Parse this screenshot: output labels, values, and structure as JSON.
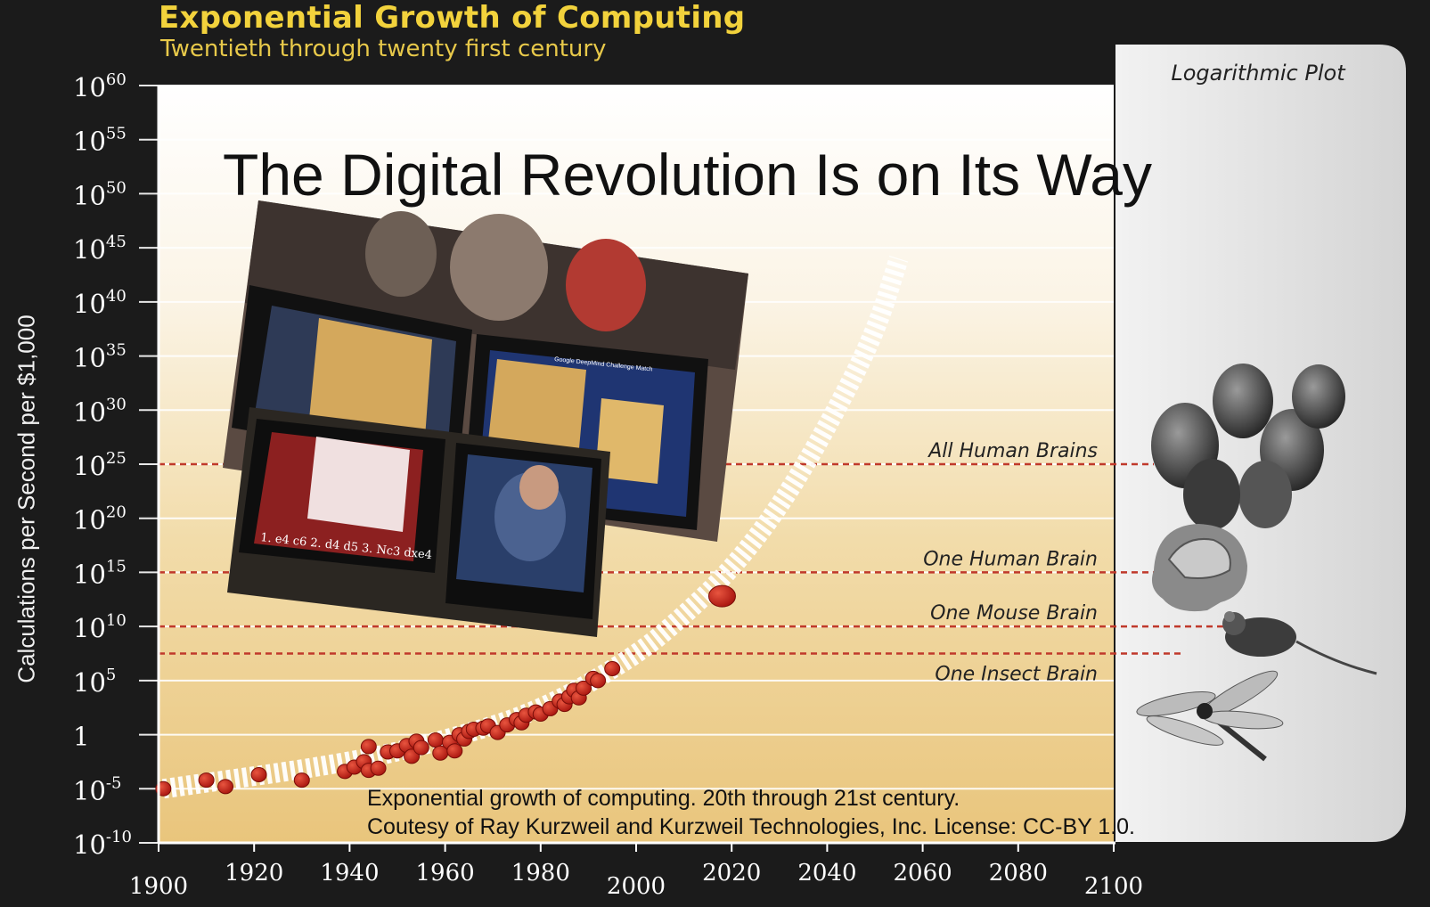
{
  "header": {
    "title": "Exponential Growth of Computing",
    "subtitle": "Twentieth through twenty first century"
  },
  "overlay": {
    "title": "The Digital Revolution Is on Its Way",
    "caption_line1": "Exponential growth of computing. 20th through 21st century.",
    "caption_line2": "Coutesy of Ray Kurzweil and Kurzweil Technologies, Inc. License: CC-BY 1.0."
  },
  "side_panel": {
    "label": "Logarithmic Plot",
    "icons": [
      "human-heads-icon",
      "brain-head-icon",
      "mouse-icon",
      "dragonfly-icon"
    ]
  },
  "photo": {
    "overlay_text": "Google DeepMind Challenge Match",
    "chess_notation": "1. e4 c6 2. d4 d5 3. Nc3 dxe4"
  },
  "colors": {
    "title": "#f2d23c",
    "background": "#1b1b1b",
    "dot": "#c4201c",
    "threshold_line": "#c0392b"
  },
  "chart_data": {
    "type": "scatter",
    "title": "Exponential Growth of Computing",
    "subtitle": "Twentieth through twenty first century",
    "xlabel": "",
    "ylabel": "Calculations per Second per $1,000",
    "xlim": [
      1900,
      2100
    ],
    "ylim_exponent": [
      -10,
      60
    ],
    "log_scale": true,
    "x_ticks": [
      "1900",
      "1920",
      "1940",
      "1960",
      "1980",
      "2000",
      "2020",
      "2040",
      "2060",
      "2080",
      "2100"
    ],
    "y_ticks": [
      {
        "base": "10",
        "exp": "60"
      },
      {
        "base": "10",
        "exp": "55"
      },
      {
        "base": "10",
        "exp": "50"
      },
      {
        "base": "10",
        "exp": "45"
      },
      {
        "base": "10",
        "exp": "40"
      },
      {
        "base": "10",
        "exp": "35"
      },
      {
        "base": "10",
        "exp": "30"
      },
      {
        "base": "10",
        "exp": "25"
      },
      {
        "base": "10",
        "exp": "20"
      },
      {
        "base": "10",
        "exp": "15"
      },
      {
        "base": "10",
        "exp": "10"
      },
      {
        "base": "10",
        "exp": "5"
      },
      {
        "base": "1",
        "exp": ""
      },
      {
        "base": "10",
        "exp": "-5"
      },
      {
        "base": "10",
        "exp": "-10"
      }
    ],
    "thresholds": [
      {
        "label": "All Human Brains",
        "exp": 25
      },
      {
        "label": "One Human Brain",
        "exp": 15
      },
      {
        "label": "One Mouse Brain",
        "exp": 10
      },
      {
        "label": "One Insect Brain",
        "exp": 7.5
      }
    ],
    "series": [
      {
        "points": [
          [
            1901,
            -5
          ],
          [
            1910,
            -4.2
          ],
          [
            1914,
            -4.8
          ],
          [
            1921,
            -3.7
          ],
          [
            1930,
            -4.2
          ],
          [
            1939,
            -3.4
          ],
          [
            1941,
            -3.0
          ],
          [
            1943,
            -2.5
          ],
          [
            1944,
            -3.3
          ],
          [
            1944,
            -1.1
          ],
          [
            1946,
            -3.1
          ],
          [
            1948,
            -1.6
          ],
          [
            1950,
            -1.5
          ],
          [
            1952,
            -1.0
          ],
          [
            1953,
            -2.0
          ],
          [
            1954,
            -0.6
          ],
          [
            1955,
            -1.2
          ],
          [
            1958,
            -0.5
          ],
          [
            1959,
            -1.7
          ],
          [
            1961,
            -0.7
          ],
          [
            1962,
            -1.5
          ],
          [
            1963,
            0.0
          ],
          [
            1964,
            -0.4
          ],
          [
            1965,
            0.3
          ],
          [
            1966,
            0.5
          ],
          [
            1968,
            0.6
          ],
          [
            1969,
            0.8
          ],
          [
            1971,
            0.2
          ],
          [
            1973,
            0.9
          ],
          [
            1975,
            1.4
          ],
          [
            1976,
            1.1
          ],
          [
            1977,
            1.8
          ],
          [
            1979,
            2.1
          ],
          [
            1980,
            1.9
          ],
          [
            1982,
            2.4
          ],
          [
            1984,
            3.1
          ],
          [
            1985,
            2.8
          ],
          [
            1986,
            3.5
          ],
          [
            1987,
            4.1
          ],
          [
            1988,
            3.4
          ],
          [
            1989,
            4.3
          ],
          [
            1991,
            5.2
          ],
          [
            1992,
            5.0
          ],
          [
            1995,
            6.1
          ]
        ]
      },
      {
        "name": "",
        "points": [
          [
            2018,
            12.8
          ]
        ]
      }
    ],
    "trend_exponents": [
      [
        1901,
        -5
      ],
      [
        1940,
        -2.6
      ],
      [
        1960,
        -0.5
      ],
      [
        1980,
        2.2
      ],
      [
        2000,
        7.3
      ],
      [
        2010,
        11.0
      ],
      [
        2020,
        15.3
      ],
      [
        2030,
        21.0
      ],
      [
        2040,
        28.4
      ],
      [
        2050,
        37.0
      ],
      [
        2055,
        44.0
      ]
    ],
    "grid": "horizontal",
    "legend": "none"
  }
}
